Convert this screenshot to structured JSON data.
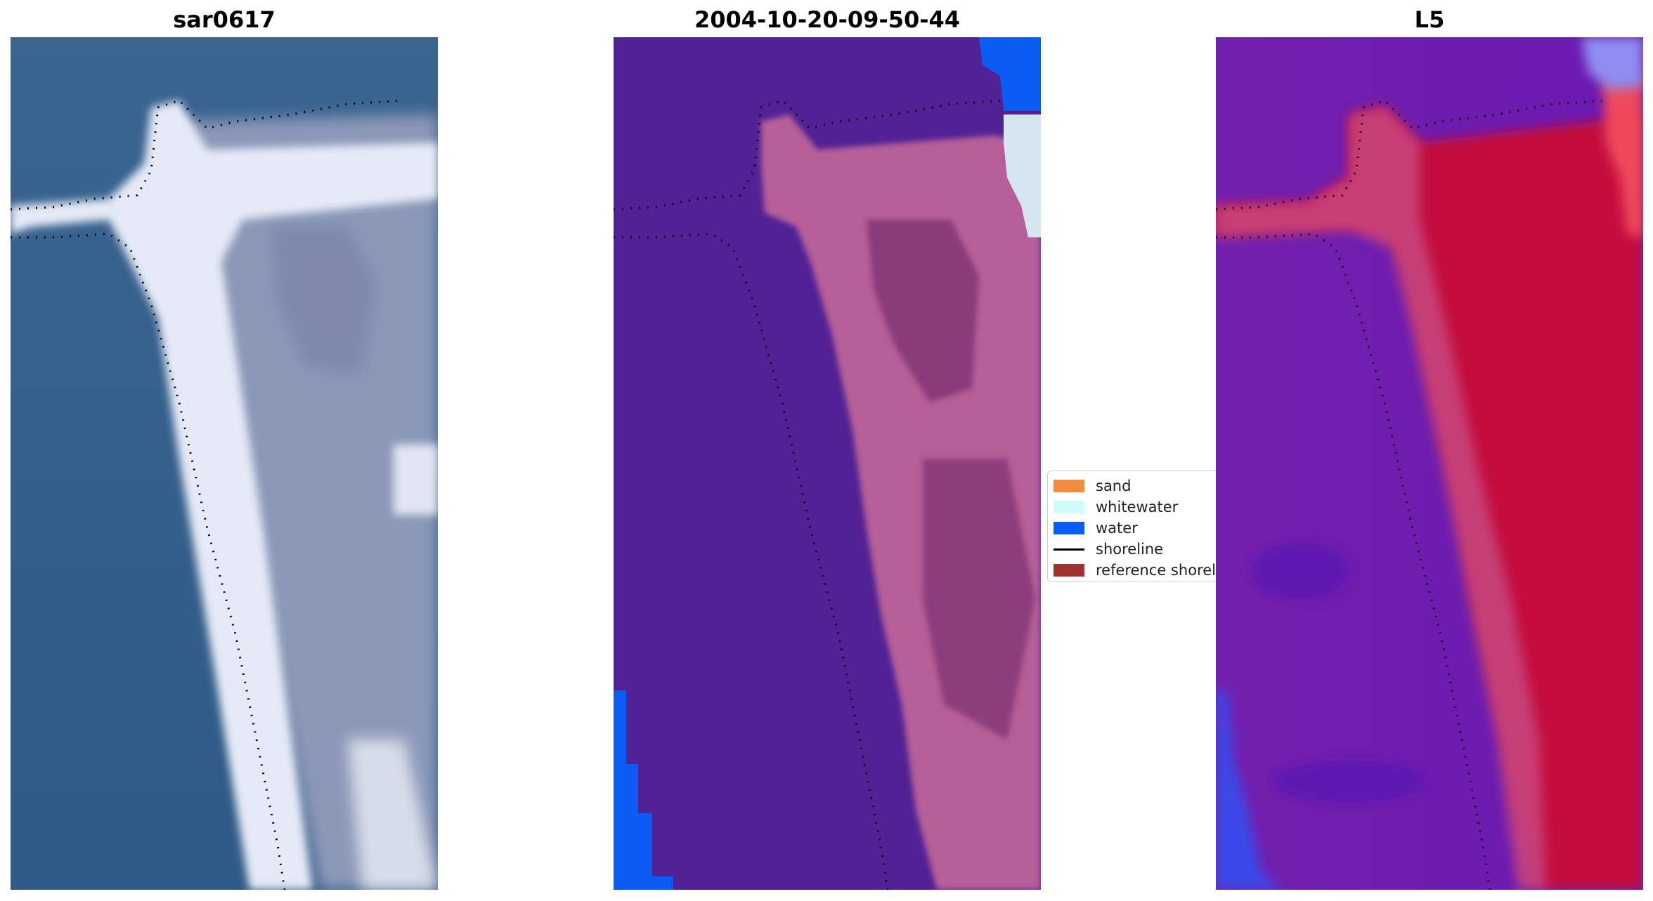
{
  "panels": [
    {
      "title": "sar0617"
    },
    {
      "title": "2004-10-20-09-50-44"
    },
    {
      "title": "L5"
    }
  ],
  "legend": {
    "items": [
      {
        "label": "sand",
        "kind": "patch",
        "color": "#f58b3c"
      },
      {
        "label": "whitewater",
        "kind": "patch",
        "color": "#cffcfa"
      },
      {
        "label": "water",
        "kind": "patch",
        "color": "#0a5cf5"
      },
      {
        "label": "shoreline",
        "kind": "line",
        "color": "#000000"
      },
      {
        "label": "reference shoreline",
        "kind": "patch",
        "color": "#a03232"
      }
    ]
  },
  "colors": {
    "rgb_sea": "#305b8a",
    "rgb_beach": "#e8ecf5",
    "class_land": "#522195",
    "class_sand_overlay": "#b65f98",
    "class_water": "#0a5cf5",
    "mndwi_low": "#6a1ab0",
    "mndwi_high": "#c4103c"
  }
}
